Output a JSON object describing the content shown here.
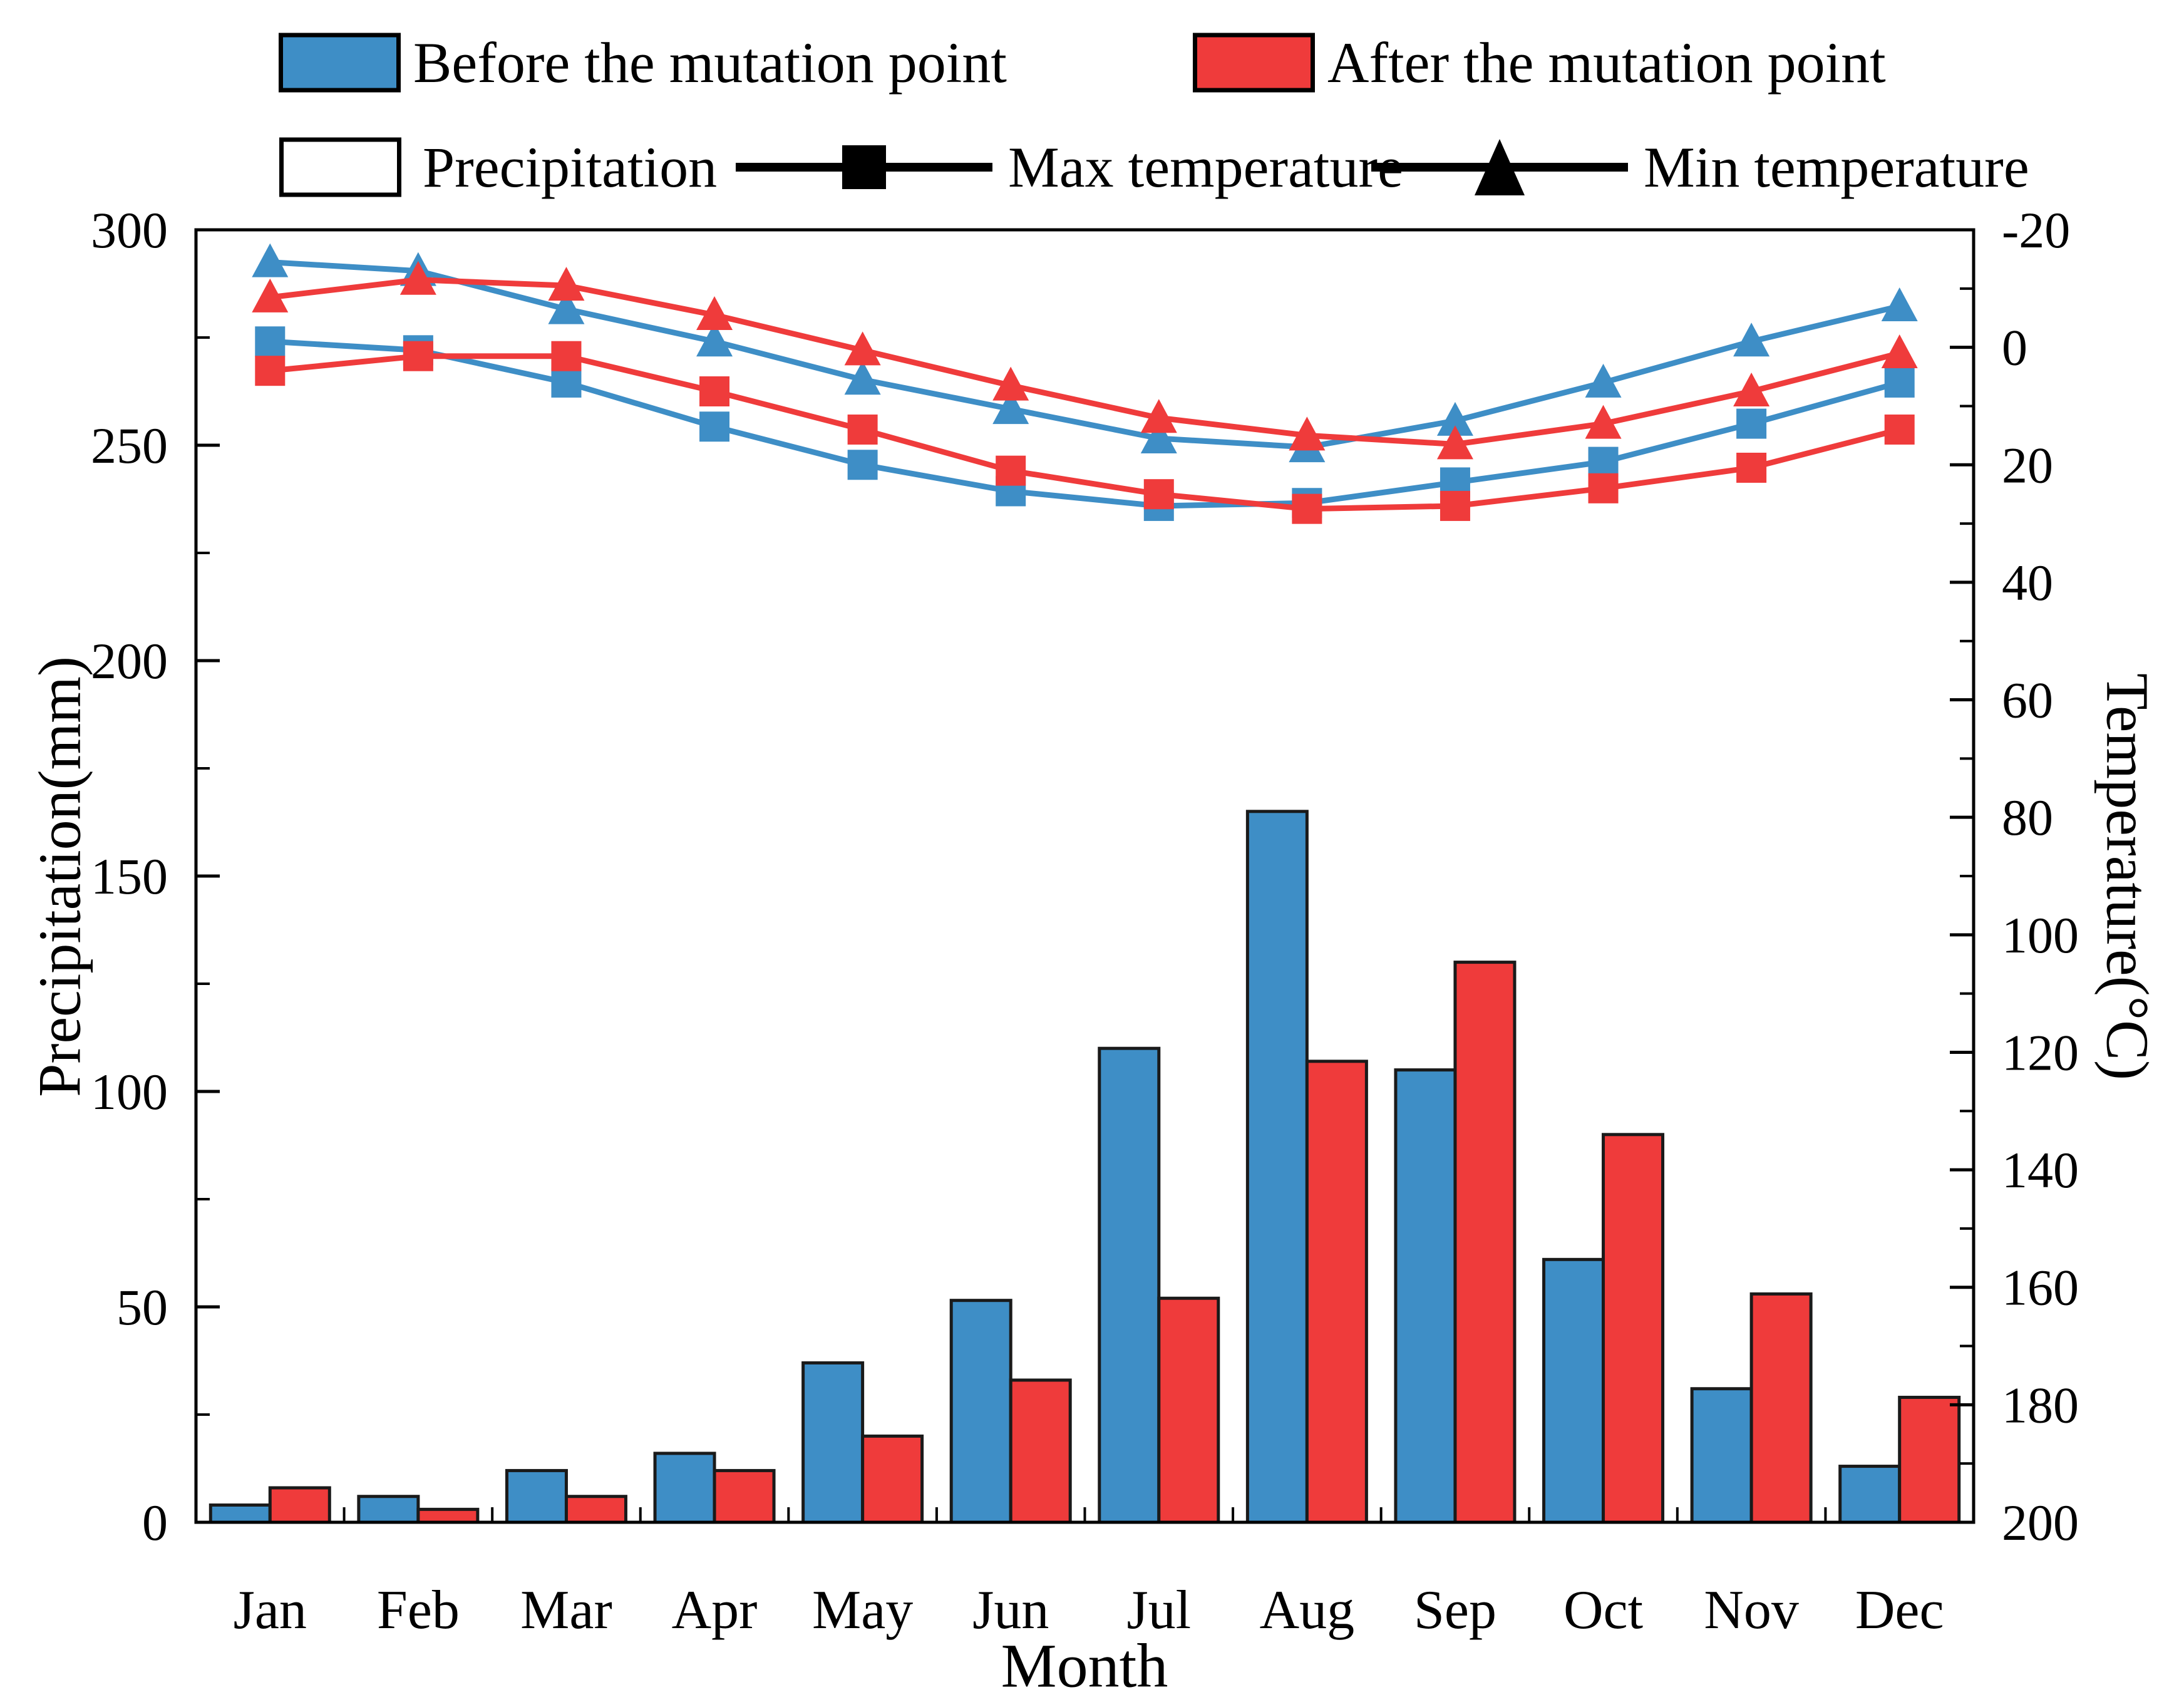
{
  "figure": {
    "background": "#ffffff"
  },
  "legend": {
    "row1": [
      {
        "swatch": "filled-blue",
        "label": "Before the mutation point"
      },
      {
        "swatch": "filled-red",
        "label": "After the mutation point"
      }
    ],
    "row2": [
      {
        "swatch": "open-rect",
        "label": "Precipitation"
      },
      {
        "swatch": "line-square",
        "label": "Max temperature"
      },
      {
        "swatch": "line-triangle",
        "label": "Min temperature"
      }
    ]
  },
  "colors": {
    "before_blue": "#3E8EC6",
    "after_red": "#EF3B3B",
    "bar_edge": "#1a1a1a",
    "axis_black": "#000000",
    "legend_marker_black": "#000000"
  },
  "chart_data": {
    "type": "combo-bar-line",
    "categories": [
      "Jan",
      "Feb",
      "Mar",
      "Apr",
      "May",
      "Jun",
      "Jul",
      "Aug",
      "Sep",
      "Oct",
      "Nov",
      "Dec"
    ],
    "series": [
      {
        "name": "Precipitation before mutation point",
        "kind": "bar",
        "group": "before",
        "axis": "left",
        "values": [
          4,
          6,
          12,
          16,
          37,
          51.5,
          110,
          165,
          105,
          61,
          31,
          13
        ]
      },
      {
        "name": "Precipitation after mutation point",
        "kind": "bar",
        "group": "after",
        "axis": "left",
        "values": [
          8,
          3,
          6,
          12,
          20,
          33,
          52,
          107,
          130,
          90,
          53,
          29
        ]
      },
      {
        "name": "Max temperature before mutation point",
        "kind": "line",
        "marker": "square",
        "group": "before",
        "axis": "right",
        "values": [
          -1,
          0.5,
          6,
          13.5,
          20,
          24.5,
          27,
          26.5,
          23,
          19.5,
          13,
          6
        ]
      },
      {
        "name": "Max temperature after mutation point",
        "kind": "line",
        "marker": "square",
        "group": "after",
        "axis": "right",
        "values": [
          4,
          1.5,
          1.5,
          7.5,
          14,
          21,
          25,
          27.5,
          27,
          24,
          20.5,
          14
        ]
      },
      {
        "name": "Min temperature before mutation point",
        "kind": "line",
        "marker": "triangle",
        "group": "before",
        "axis": "right",
        "values": [
          -14.5,
          -13,
          -6.5,
          -1,
          5.5,
          10.5,
          15.5,
          17,
          12.5,
          6,
          -1,
          -7
        ]
      },
      {
        "name": "Min temperature after mutation point",
        "kind": "line",
        "marker": "triangle",
        "group": "after",
        "axis": "right",
        "values": [
          -8.5,
          -11.5,
          -10.5,
          -5.5,
          0.5,
          6.5,
          12,
          15,
          16.5,
          13,
          7.5,
          1
        ]
      }
    ],
    "left_axis": {
      "label": "Precipitation(mm)",
      "min": 0,
      "max": 300,
      "major_step": 50,
      "minor_step": 25,
      "tick_labels": [
        "300",
        "250",
        "200",
        "150",
        "100",
        "50",
        "0"
      ]
    },
    "right_axis": {
      "label": "Temperature(°C)",
      "min": -20,
      "max": 200,
      "major_step": 20,
      "minor_step": 10,
      "inverted": true,
      "tick_labels": [
        "-20",
        "0",
        "20",
        "40",
        "60",
        "80",
        "100",
        "120",
        "140",
        "160",
        "180",
        "200"
      ]
    },
    "x_axis": {
      "label": "Month"
    },
    "layout_hints": {
      "grid": false,
      "legend_position": "top",
      "box_frame": true
    }
  }
}
